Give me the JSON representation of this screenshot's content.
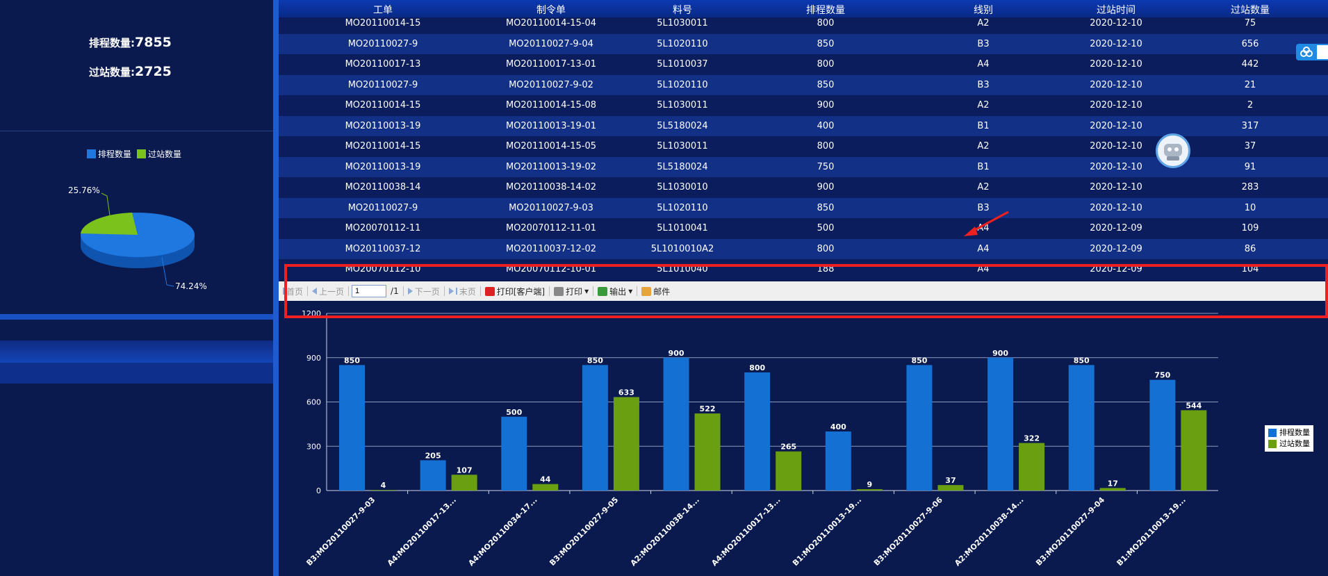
{
  "summary": {
    "scheduled_label": "排程数量:",
    "scheduled_value": "7855",
    "passed_label": "过站数量:",
    "passed_value": "2725"
  },
  "pie": {
    "legend": [
      "排程数量",
      "过站数量"
    ],
    "label_small": "25.76%",
    "label_large": "74.24%",
    "slices": [
      {
        "name": "排程数量",
        "percent": 74.24,
        "color": "#1f77e0"
      },
      {
        "name": "过站数量",
        "percent": 25.76,
        "color": "#7bc21c"
      }
    ]
  },
  "table": {
    "headers": [
      "工单",
      "制令单",
      "料号",
      "排程数量",
      "线别",
      "过站时间",
      "过站数量"
    ],
    "rows": [
      [
        "MO20110014-15",
        "MO20110014-15-04",
        "5L1030011",
        "800",
        "A2",
        "2020-12-10",
        "75"
      ],
      [
        "MO20110027-9",
        "MO20110027-9-04",
        "5L1020110",
        "850",
        "B3",
        "2020-12-10",
        "656"
      ],
      [
        "MO20110017-13",
        "MO20110017-13-01",
        "5L1010037",
        "800",
        "A4",
        "2020-12-10",
        "442"
      ],
      [
        "MO20110027-9",
        "MO20110027-9-02",
        "5L1020110",
        "850",
        "B3",
        "2020-12-10",
        "21"
      ],
      [
        "MO20110014-15",
        "MO20110014-15-08",
        "5L1030011",
        "900",
        "A2",
        "2020-12-10",
        "2"
      ],
      [
        "MO20110013-19",
        "MO20110013-19-01",
        "5L5180024",
        "400",
        "B1",
        "2020-12-10",
        "317"
      ],
      [
        "MO20110014-15",
        "MO20110014-15-05",
        "5L1030011",
        "800",
        "A2",
        "2020-12-10",
        "37"
      ],
      [
        "MO20110013-19",
        "MO20110013-19-02",
        "5L5180024",
        "750",
        "B1",
        "2020-12-10",
        "91"
      ],
      [
        "MO20110038-14",
        "MO20110038-14-02",
        "5L1030010",
        "900",
        "A2",
        "2020-12-10",
        "283"
      ],
      [
        "MO20110027-9",
        "MO20110027-9-03",
        "5L1020110",
        "850",
        "B3",
        "2020-12-10",
        "10"
      ],
      [
        "MO20070112-11",
        "MO20070112-11-01",
        "5L1010041",
        "500",
        "A4",
        "2020-12-09",
        "109"
      ],
      [
        "MO20110037-12",
        "MO20110037-12-02",
        "5L1010010A2",
        "800",
        "A4",
        "2020-12-09",
        "86"
      ],
      [
        "MO20070112-10",
        "MO20070112-10-01",
        "5L1010040",
        "188",
        "A4",
        "2020-12-09",
        "104"
      ]
    ]
  },
  "toolbar": {
    "first": "首页",
    "prev": "上一页",
    "page_value": "1",
    "page_total": "/1",
    "next": "下一页",
    "last": "末页",
    "print_client": "打印[客户端]",
    "print": "打印",
    "export": "输出",
    "mail": "邮件"
  },
  "chart_data": {
    "type": "bar",
    "categories": [
      "B3:MO20110027-9-03",
      "A4:MO20110017-13...",
      "A4:MO20110034-17...",
      "B3:MO20110027-9-05",
      "A2:MO20110038-14...",
      "A4:MO20110017-13...",
      "B1:MO20110013-19...",
      "B3:MO20110027-9-06",
      "A2:MO20110038-14...",
      "B3:MO20110027-9-04",
      "B1:MO20110013-19..."
    ],
    "series": [
      {
        "name": "排程数量",
        "color": "#1570d4",
        "values": [
          850,
          205,
          500,
          850,
          900,
          800,
          400,
          850,
          900,
          850,
          750
        ]
      },
      {
        "name": "过站数量",
        "color": "#6b9f12",
        "values": [
          4,
          107,
          44,
          633,
          522,
          265,
          9,
          37,
          322,
          17,
          544
        ]
      }
    ],
    "yticks": [
      "0",
      "300",
      "600",
      "900",
      "1200"
    ],
    "ylim": [
      0,
      1200
    ],
    "grid": true,
    "legend_position": "right"
  }
}
